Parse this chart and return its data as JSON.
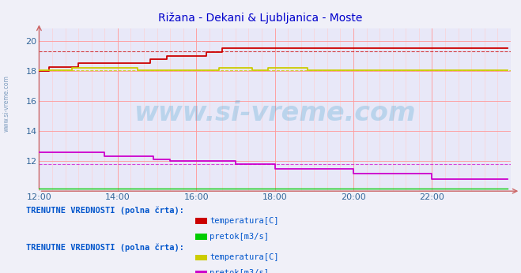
{
  "title": "Rižana - Dekani & Ljubljanica - Moste",
  "title_color": "#0000cc",
  "bg_color": "#f0f0f8",
  "plot_bg_color": "#e8e8f8",
  "grid_color": "#ff9999",
  "grid_color_minor": "#ffcccc",
  "xlim": [
    0,
    144
  ],
  "ylim": [
    10.0,
    20.8
  ],
  "yticks": [
    12,
    14,
    16,
    18,
    20
  ],
  "xtick_labels": [
    "12:00",
    "14:00",
    "16:00",
    "18:00",
    "20:00",
    "22:00"
  ],
  "xtick_positions": [
    0,
    24,
    48,
    72,
    96,
    120
  ],
  "watermark_text": "www.si-vreme.com",
  "watermark_color": "#3399cc",
  "watermark_alpha": 0.25,
  "watermark_fontsize": 24,
  "legend1_title": "TRENUTNE VREDNOSTI (polna črta):",
  "legend2_title": "TRENUTNE VREDNOSTI (polna črta):",
  "legend1_items": [
    {
      "label": "temperatura[C]",
      "color": "#cc0000"
    },
    {
      "label": "pretok[m3/s]",
      "color": "#00cc00"
    }
  ],
  "legend2_items": [
    {
      "label": "temperatura[C]",
      "color": "#cccc00"
    },
    {
      "label": "pretok[m3/s]",
      "color": "#cc00cc"
    }
  ],
  "rizana_temp_color": "#cc0000",
  "rizana_temp_dashed": 19.3,
  "rizana_pretok_color": "#00cc00",
  "rizana_pretok_value": 10.15,
  "ljub_temp_color": "#cccc00",
  "ljub_temp_dashed": 18.05,
  "ljub_pretok_color": "#cc00cc",
  "ljub_pretok_dashed": 11.8,
  "axis_arrow_color": "#cc6666",
  "tick_color": "#336699",
  "tick_fontsize": 8,
  "left_label": "www.si-vreme.com",
  "left_label_color": "#336699"
}
